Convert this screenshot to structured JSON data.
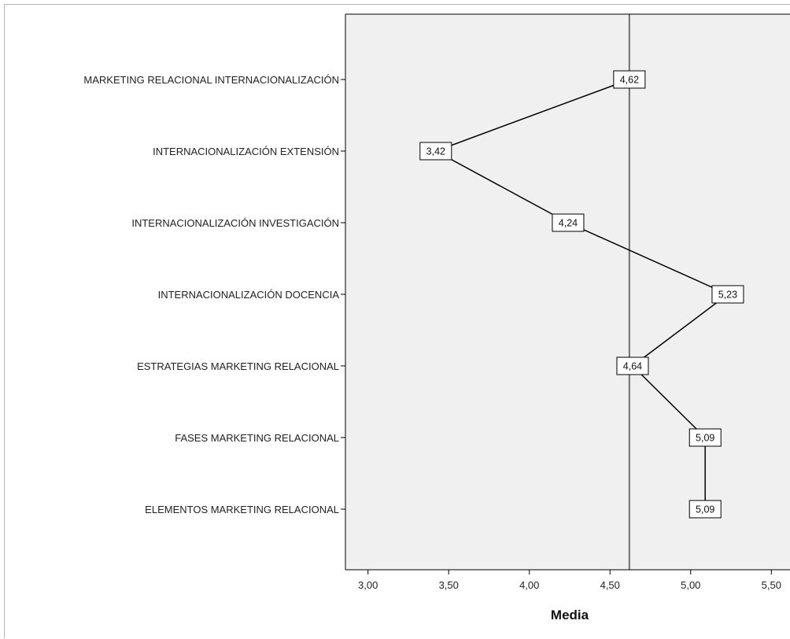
{
  "chart_data": {
    "type": "line",
    "orientation": "horizontal",
    "title": "",
    "xlabel": "Media",
    "ylabel": "",
    "xlim": [
      2.86,
      5.64
    ],
    "xticks": [
      "3,00",
      "3,50",
      "4,00",
      "4,50",
      "5,00",
      "5,50"
    ],
    "xtick_values": [
      3.0,
      3.5,
      4.0,
      4.5,
      5.0,
      5.5
    ],
    "reference_line": 4.62,
    "grid": false,
    "categories": [
      "MARKETING RELACIONAL INTERNACIONALIZACIÓN",
      "INTERNACIONALIZACIÓN EXTENSIÓN",
      "INTERNACIONALIZACIÓN INVESTIGACIÓN",
      "INTERNACIONALIZACIÓN DOCENCIA",
      "ESTRATEGIAS MARKETING RELACIONAL",
      "FASES MARKETING RELACIONAL",
      "ELEMENTOS MARKETING RELACIONAL"
    ],
    "values": [
      4.62,
      3.42,
      4.24,
      5.23,
      4.64,
      5.09,
      5.09
    ],
    "data_labels": [
      "4,62",
      "3,42",
      "4,24",
      "5,23",
      "4,64",
      "5,09",
      "5,09"
    ],
    "colors": {
      "plot_background": "#f0f0f0",
      "line": "#000000",
      "reference_line": "#707070"
    }
  }
}
